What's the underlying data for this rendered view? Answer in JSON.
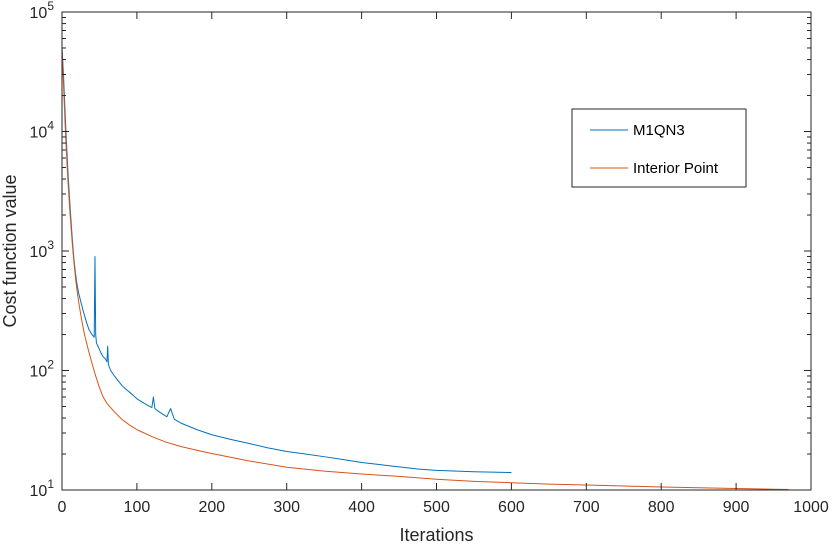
{
  "chart_data": {
    "type": "line",
    "title": "",
    "xlabel": "Iterations",
    "ylabel": "Cost function value",
    "xlim": [
      0,
      1000
    ],
    "ylim": [
      10,
      100000
    ],
    "yscale": "log",
    "grid": false,
    "legend_position": "top-right",
    "x_ticks": [
      0,
      100,
      200,
      300,
      400,
      500,
      600,
      700,
      800,
      900,
      1000
    ],
    "x_tick_labels": [
      "0",
      "100",
      "200",
      "300",
      "400",
      "500",
      "600",
      "700",
      "800",
      "900",
      "1000"
    ],
    "y_ticks": [
      10,
      100,
      1000,
      10000,
      100000
    ],
    "y_tick_labels": [
      {
        "base": "10",
        "exp": "1"
      },
      {
        "base": "10",
        "exp": "2"
      },
      {
        "base": "10",
        "exp": "3"
      },
      {
        "base": "10",
        "exp": "4"
      },
      {
        "base": "10",
        "exp": "5"
      }
    ],
    "series": [
      {
        "name": "M1QN3",
        "color": "#0072bd",
        "x": [
          0,
          2,
          4,
          6,
          8,
          10,
          12,
          14,
          16,
          18,
          20,
          22,
          25,
          28,
          30,
          33,
          36,
          40,
          43,
          44,
          45,
          46,
          48,
          50,
          52,
          55,
          58,
          60,
          61,
          62,
          65,
          70,
          75,
          80,
          85,
          90,
          95,
          100,
          110,
          120,
          122,
          124,
          130,
          140,
          145,
          150,
          160,
          170,
          180,
          200,
          225,
          250,
          275,
          300,
          325,
          350,
          375,
          400,
          425,
          450,
          475,
          500,
          550,
          600
        ],
        "y": [
          50000,
          30000,
          15000,
          8000,
          4500,
          2800,
          1800,
          1200,
          850,
          650,
          530,
          450,
          380,
          320,
          290,
          250,
          220,
          200,
          190,
          900,
          200,
          170,
          160,
          150,
          140,
          130,
          125,
          118,
          160,
          112,
          100,
          90,
          82,
          75,
          70,
          66,
          62,
          58,
          53,
          49,
          60,
          48,
          45,
          41,
          48,
          39,
          36,
          34,
          32,
          29,
          26.5,
          24.5,
          22.5,
          21,
          20,
          19,
          18,
          17,
          16.3,
          15.6,
          15,
          14.6,
          14.2,
          14
        ]
      },
      {
        "name": "Interior Point",
        "color": "#d95319",
        "x": [
          0,
          2,
          4,
          6,
          8,
          10,
          12,
          14,
          16,
          18,
          20,
          23,
          26,
          30,
          35,
          40,
          45,
          50,
          55,
          60,
          70,
          80,
          90,
          100,
          120,
          140,
          160,
          180,
          200,
          250,
          300,
          350,
          400,
          450,
          500,
          550,
          600,
          650,
          700,
          750,
          800,
          850,
          900,
          950,
          970
        ],
        "y": [
          50000,
          25000,
          12000,
          6500,
          3800,
          2400,
          1600,
          1100,
          800,
          600,
          470,
          350,
          270,
          200,
          150,
          115,
          90,
          72,
          60,
          53,
          45,
          39,
          35,
          32,
          28,
          25,
          23,
          21.5,
          20.2,
          17.5,
          15.5,
          14.4,
          13.6,
          13,
          12.3,
          11.8,
          11.5,
          11.2,
          11,
          10.8,
          10.6,
          10.45,
          10.3,
          10.15,
          10.1
        ]
      }
    ]
  }
}
